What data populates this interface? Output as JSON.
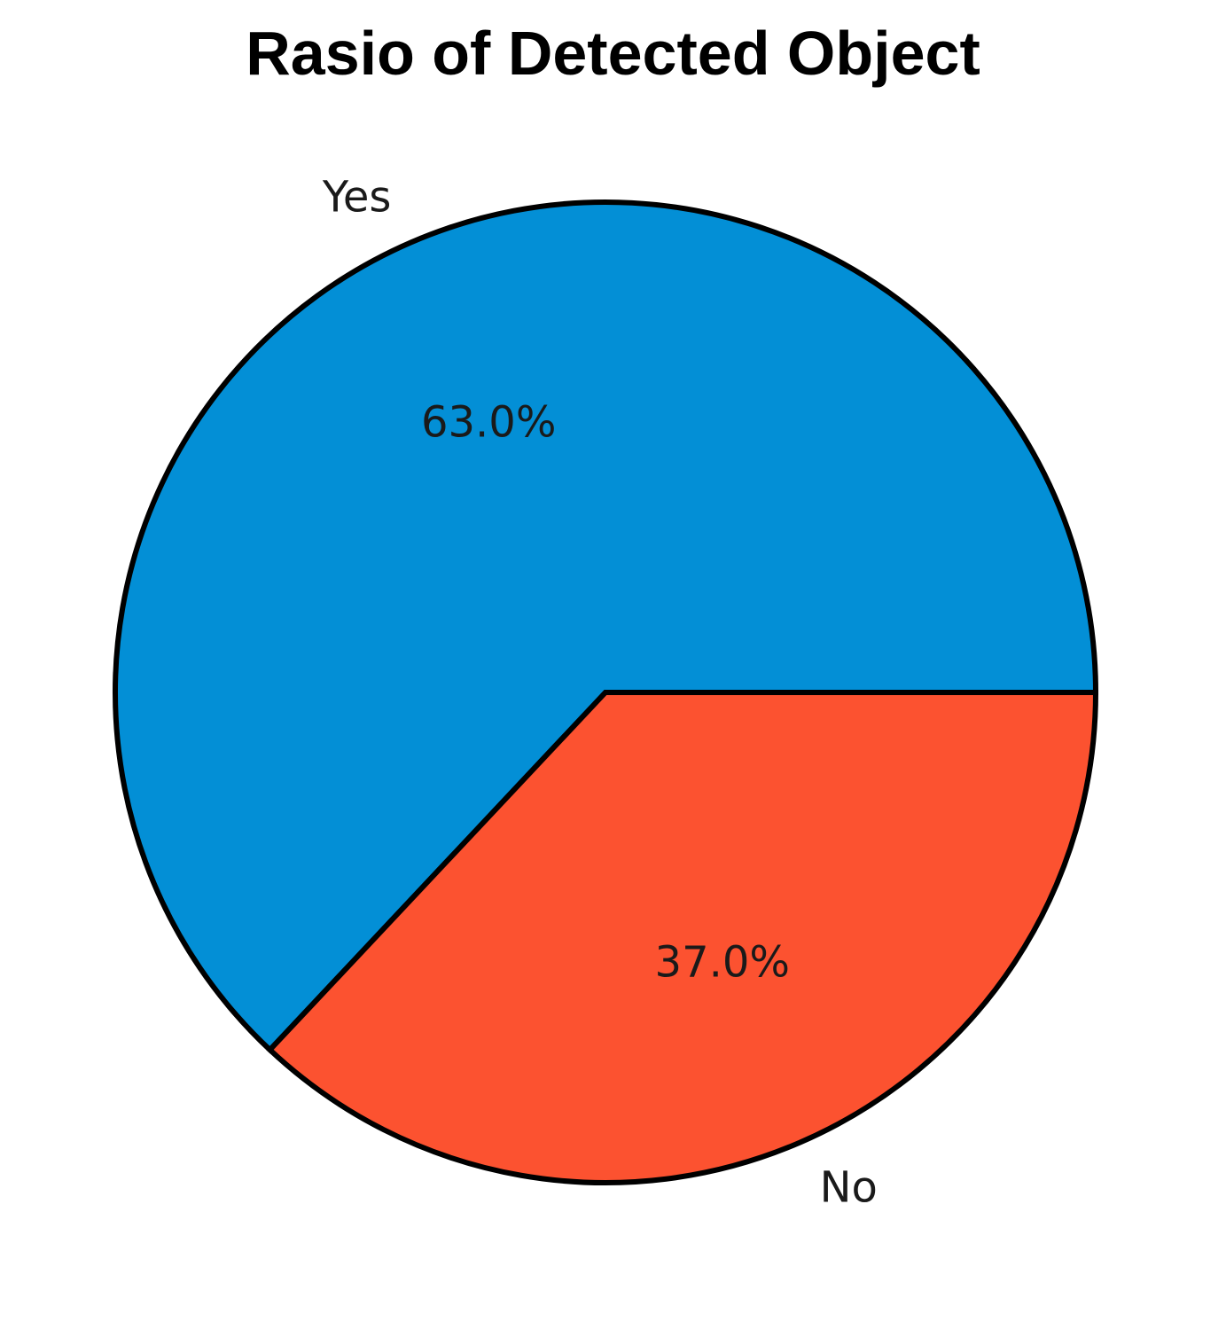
{
  "chart_data": {
    "type": "pie",
    "title": "Rasio of Detected Object",
    "slices": [
      {
        "label": "Yes",
        "value": 63.0,
        "pct_label": "63.0%",
        "color": "#038fd6"
      },
      {
        "label": "No",
        "value": 37.0,
        "pct_label": "37.0%",
        "color": "#fc5230"
      }
    ],
    "start_angle_deg": 0,
    "direction": "counterclockwise",
    "edge_color": "#000000"
  }
}
